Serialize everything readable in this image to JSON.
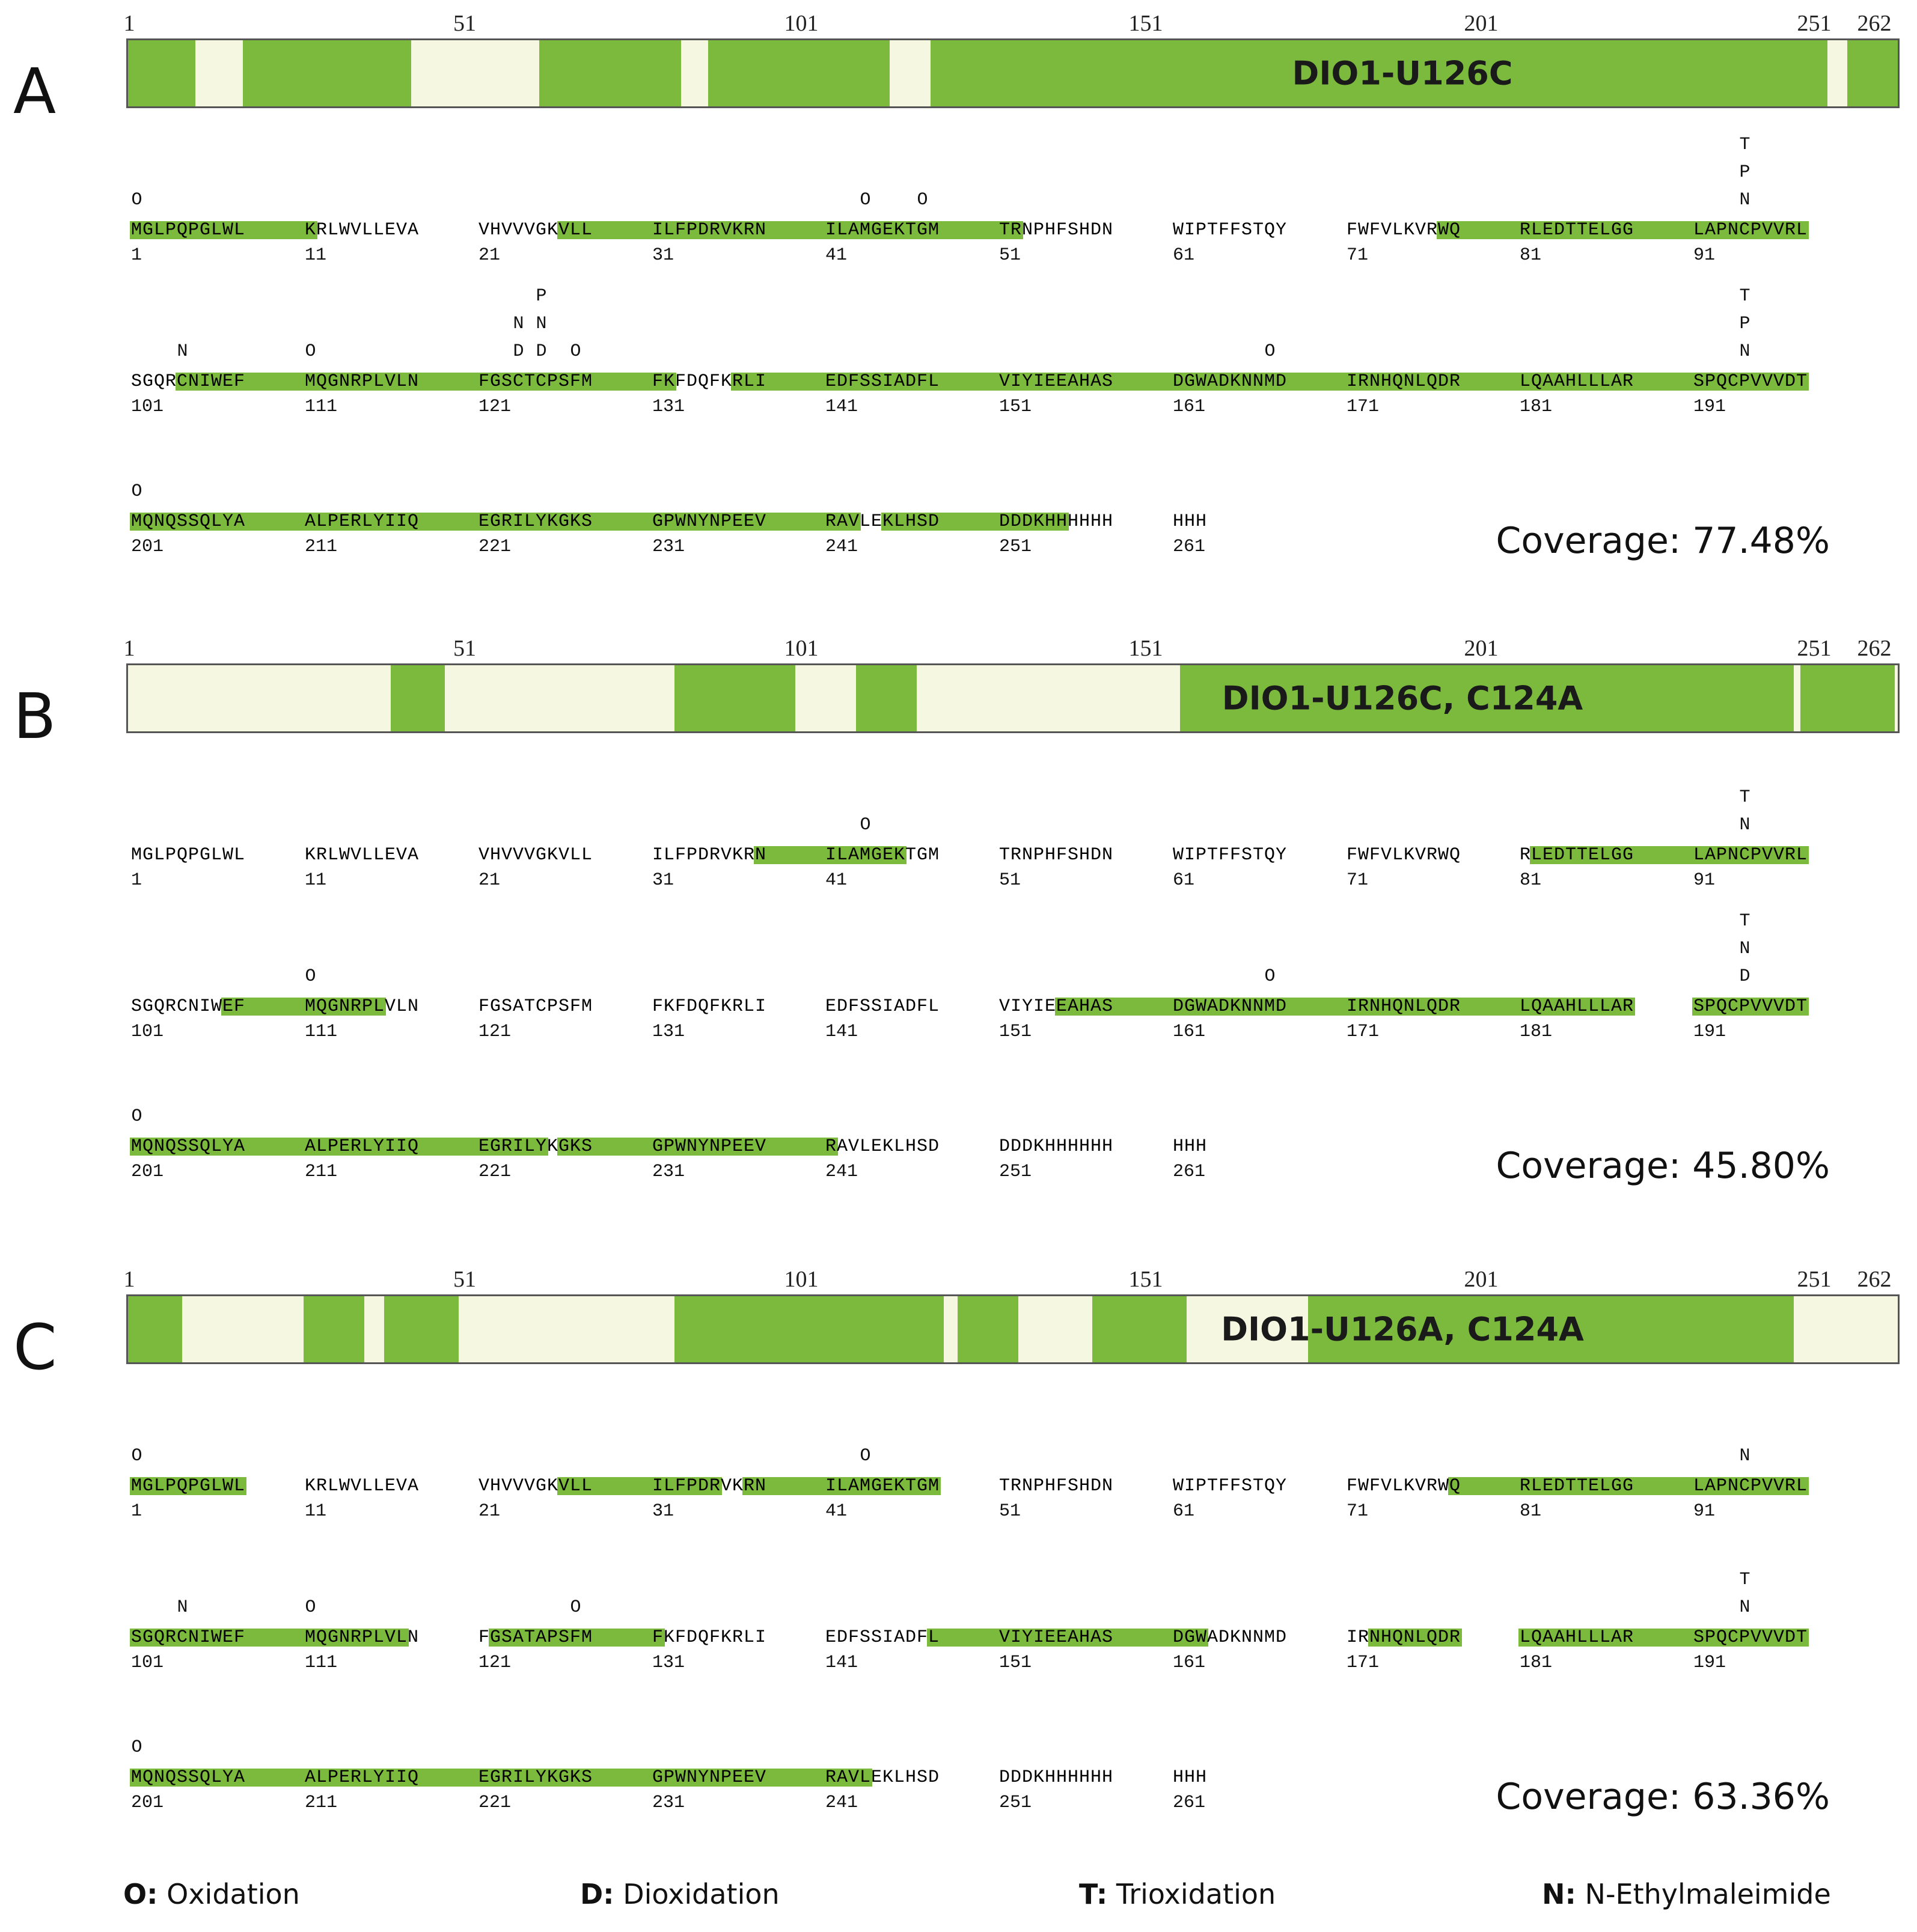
{
  "colors": {
    "covered": "#7cba3d",
    "uncovered": "#f5f7e1",
    "border": "#555555"
  },
  "legend": [
    {
      "key": "O:",
      "label": "Oxidation"
    },
    {
      "key": "D:",
      "label": "Dioxidation"
    },
    {
      "key": "T:",
      "label": "Trioxidation"
    },
    {
      "key": "N:",
      "label": "N-Ethylmaleimide"
    }
  ],
  "panels": [
    {
      "letter": "A",
      "name": "DIO1-U126C",
      "coverage": "Coverage: 77.48%",
      "coverage_value": 77.48,
      "ticks": [
        "1",
        "51",
        "101",
        "151",
        "201",
        "251",
        "262"
      ],
      "bar_covered": [
        [
          1,
          11
        ],
        [
          18,
          43
        ],
        [
          62,
          83
        ],
        [
          87,
          114
        ],
        [
          120,
          253
        ],
        [
          256,
          266
        ]
      ],
      "rows": [
        {
          "start": 1,
          "seq": "MGLPQPGLWLKRLWVLLEVAVHVVVGKVLLILFPDRVKRNILAMGEKTGMTRNPHFSHDNWIPTFFSTQYFWFVLKVRWQRLEDTTELGGLAPNCPVVRL",
          "hl": [
            [
              1,
              11
            ],
            [
              28,
              52
            ],
            [
              79,
              100
            ]
          ],
          "mods": [
            {
              "pos": 1,
              "marks": [
                "O"
              ]
            },
            {
              "pos": 44,
              "marks": [
                "O"
              ]
            },
            {
              "pos": 49,
              "marks": [
                "O"
              ]
            },
            {
              "pos": 95,
              "marks": [
                "T",
                "P",
                "N"
              ]
            }
          ]
        },
        {
          "start": 101,
          "seq": "SGQRCNIWEFMQGNRPLVLNFGSCTCPSFMFKFDQFKRLIEDFSSIADFLVIYIEEAHASDGWADKNNMDIRNHQNLQDRLQAAHLLLARSPQCPVVVDT",
          "hl": [
            [
              105,
              132
            ],
            [
              138,
              200
            ]
          ],
          "mods": [
            {
              "pos": 105,
              "marks": [
                "N"
              ]
            },
            {
              "pos": 111,
              "marks": [
                "O"
              ]
            },
            {
              "pos": 124,
              "marks": [
                "N",
                "D"
              ]
            },
            {
              "pos": 126,
              "marks": [
                "P",
                "N",
                "D"
              ]
            },
            {
              "pos": 129,
              "marks": [
                "O"
              ]
            },
            {
              "pos": 169,
              "marks": [
                "O"
              ]
            },
            {
              "pos": 195,
              "marks": [
                "T",
                "P",
                "N"
              ]
            }
          ]
        },
        {
          "start": 201,
          "seq": "MQNQSSQLYAALPERLYIIQEGRILYKGKSGPWNYNPEEVRAVLEKLHSDDDDKHHHHHHHHH",
          "hl": [
            [
              201,
              243
            ],
            [
              246,
              256
            ]
          ],
          "mods": [
            {
              "pos": 201,
              "marks": [
                "O"
              ]
            }
          ]
        }
      ]
    },
    {
      "letter": "B",
      "name": "DIO1-U126C, C124A",
      "coverage": "Coverage: 45.80%",
      "coverage_value": 45.8,
      "ticks": [
        "1",
        "51",
        "101",
        "151",
        "201",
        "251",
        "262"
      ],
      "bar_covered": [
        [
          40,
          48
        ],
        [
          82,
          100
        ],
        [
          109,
          118
        ],
        [
          157,
          248
        ],
        [
          249,
          263
        ]
      ],
      "rows": [
        {
          "start": 1,
          "seq": "MGLPQPGLWLKRLWVLLEVAVHVVVGKVLLILFPDRVKRNILAMGEKTGMTRNPHFSHDNWIPTFFSTQYFWFVLKVRWQRLEDTTELGGLAPNCPVVRL",
          "hl": [
            [
              40,
              47
            ],
            [
              82,
              100
            ]
          ],
          "mods": [
            {
              "pos": 44,
              "marks": [
                "O"
              ]
            },
            {
              "pos": 95,
              "marks": [
                "T",
                "N"
              ]
            }
          ]
        },
        {
          "start": 101,
          "seq": "SGQRCNIWEFMQGNRPLVLNFGSATCPSFMFKFDQFKRLIEDFSSIADFLVIYIEEAHASDGWADKNNMDIRNHQNLQDRLQAAHLLLARSPQCPVVVDT",
          "hl": [
            [
              109,
              117
            ],
            [
              156,
              190
            ],
            [
              191,
              200
            ]
          ],
          "mods": [
            {
              "pos": 111,
              "marks": [
                "O"
              ]
            },
            {
              "pos": 169,
              "marks": [
                "O"
              ]
            },
            {
              "pos": 195,
              "marks": [
                "T",
                "N",
                "D"
              ]
            }
          ]
        },
        {
          "start": 201,
          "seq": "MQNQSSQLYAALPERLYIIQEGRILYKGKSGPWNYNPEEVRAVLEKLHSDDDDKHHHHHHHHH",
          "hl": [
            [
              201,
              226
            ],
            [
              228,
              241
            ]
          ],
          "mods": [
            {
              "pos": 201,
              "marks": [
                "O"
              ]
            }
          ]
        }
      ]
    },
    {
      "letter": "C",
      "name": "DIO1-U126A, C124A",
      "coverage": "Coverage: 63.36%",
      "coverage_value": 63.36,
      "ticks": [
        "1",
        "51",
        "101",
        "151",
        "201",
        "251",
        "262"
      ],
      "bar_covered": [
        [
          1,
          9
        ],
        [
          27,
          36
        ],
        [
          39,
          50
        ],
        [
          82,
          122
        ],
        [
          124,
          133
        ],
        [
          144,
          158
        ],
        [
          176,
          248
        ]
      ],
      "rows": [
        {
          "start": 1,
          "seq": "MGLPQPGLWLKRLWVLLEVAVHVVVGKVLLILFPDRVKRNILAMGEKTGMTRNPHFSHDNWIPTFFSTQYFWFVLKVRWQRLEDTTELGGLAPNCPVVRL",
          "hl": [
            [
              1,
              10
            ],
            [
              28,
              36
            ],
            [
              39,
              50
            ],
            [
              80,
              100
            ]
          ],
          "mods": [
            {
              "pos": 1,
              "marks": [
                "O"
              ]
            },
            {
              "pos": 44,
              "marks": [
                "O"
              ]
            },
            {
              "pos": 95,
              "marks": [
                "N"
              ]
            }
          ]
        },
        {
          "start": 101,
          "seq": "SGQRCNIWEFMQGNRPLVLNFGSATAPSFMFKFDQFKRLIEDFSSIADFLVIYIEEAHASDGWADKNNMDIRNHQNLQDRLQAAHLLLARSPQCPVVVDT",
          "hl": [
            [
              101,
              119
            ],
            [
              122,
              131
            ],
            [
              150,
              163
            ],
            [
              173,
              180
            ],
            [
              181,
              200
            ]
          ],
          "mods": [
            {
              "pos": 105,
              "marks": [
                "N"
              ]
            },
            {
              "pos": 111,
              "marks": [
                "O"
              ]
            },
            {
              "pos": 129,
              "marks": [
                "O"
              ]
            },
            {
              "pos": 195,
              "marks": [
                "T",
                "N"
              ]
            }
          ]
        },
        {
          "start": 201,
          "seq": "MQNQSSQLYAALPERLYIIQEGRILYKGKSGPWNYNPEEVRAVLEKLHSDDDDKHHHHHHHHH",
          "hl": [
            [
              201,
              244
            ]
          ],
          "mods": [
            {
              "pos": 201,
              "marks": [
                "O"
              ]
            }
          ]
        }
      ]
    }
  ]
}
